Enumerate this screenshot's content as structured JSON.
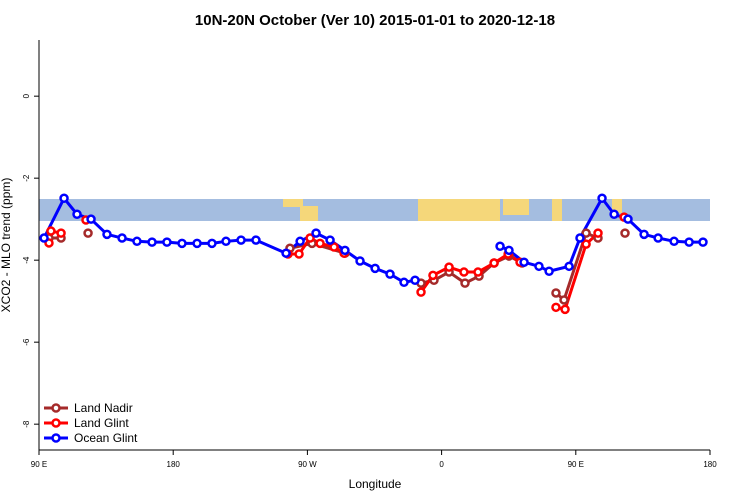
{
  "chart_data": {
    "type": "line",
    "title": "10N-20N October (Ver 10)   2015-01-01 to 2020-12-18",
    "x_label": "Longitude",
    "y_label": "XCO2 - MLO trend (ppm)",
    "xlim": [
      90,
      540
    ],
    "ylim": [
      1.37,
      -8.63
    ],
    "xticks": [
      {
        "value": 90,
        "label": "90 E"
      },
      {
        "value": 180,
        "label": "180"
      },
      {
        "value": 270,
        "label": "90 W"
      },
      {
        "value": 360,
        "label": "0"
      },
      {
        "value": 450,
        "label": "90 E"
      },
      {
        "value": 540,
        "label": "180"
      }
    ],
    "yticks": [
      0,
      -2,
      -4,
      -6,
      -8
    ],
    "legend": "bottom-left",
    "series": [
      {
        "name": "Land Nadir",
        "color": "#a52a2a",
        "x": [
          96.7,
          104.8,
          null,
          122.9,
          null,
          258.3,
          273.1,
          295.2,
          null,
          346.2,
          354.9,
          365.0,
          375.7,
          385.1,
          395.2,
          405.2,
          414.0,
          null,
          436.7,
          442.1,
          456.9,
          464.9,
          null,
          483.0
        ],
        "values": [
          -3.46,
          -3.46,
          null,
          -3.34,
          null,
          -3.71,
          -3.59,
          -3.83,
          null,
          -4.56,
          -4.49,
          -4.29,
          -4.56,
          -4.39,
          -4.07,
          -3.9,
          -4.07,
          null,
          -4.8,
          -4.97,
          -3.34,
          -3.46,
          null,
          -3.34
        ]
      },
      {
        "name": "Land Glint",
        "color": "#ff0000",
        "x": [
          96.7,
          98.0,
          104.8,
          null,
          121.5,
          null,
          257.0,
          264.4,
          271.8,
          278.5,
          287.9,
          294.6,
          null,
          346.2,
          354.2,
          365.0,
          375.0,
          384.4,
          395.2,
          404.6,
          412.6,
          null,
          436.7,
          442.8,
          456.9,
          464.9,
          null,
          482.4
        ],
        "values": [
          -3.58,
          -3.29,
          -3.34,
          null,
          -3.02,
          null,
          -3.85,
          -3.85,
          -3.46,
          -3.59,
          -3.68,
          -3.83,
          null,
          -4.78,
          -4.37,
          -4.17,
          -4.29,
          -4.29,
          -4.07,
          -3.85,
          -4.05,
          null,
          -5.15,
          -5.2,
          -3.61,
          -3.34,
          null,
          -2.95
        ]
      },
      {
        "name": "Ocean Glint",
        "color": "#0000ff",
        "x": [
          93.4,
          106.8,
          115.5,
          124.9,
          135.6,
          145.7,
          155.7,
          165.8,
          175.8,
          185.9,
          196.0,
          206.0,
          215.4,
          225.5,
          235.5,
          255.7,
          265.1,
          275.8,
          285.2,
          295.2,
          305.3,
          315.4,
          325.4,
          334.8,
          342.2,
          null,
          399.2,
          405.2,
          415.3,
          425.3,
          432.1,
          445.5,
          452.8,
          467.6,
          475.7,
          485.0,
          495.8,
          505.2,
          515.9,
          526.0,
          535.3
        ],
        "values": [
          -3.46,
          -2.49,
          -2.88,
          -3.0,
          -3.37,
          -3.46,
          -3.54,
          -3.56,
          -3.56,
          -3.59,
          -3.59,
          -3.59,
          -3.54,
          -3.51,
          -3.51,
          -3.83,
          -3.54,
          -3.34,
          -3.51,
          -3.76,
          -4.02,
          -4.2,
          -4.34,
          -4.54,
          -4.49,
          null,
          -3.66,
          -3.76,
          -4.05,
          -4.15,
          -4.27,
          -4.15,
          -3.46,
          -2.49,
          -2.88,
          -3.0,
          -3.37,
          -3.46,
          -3.54,
          -3.56,
          -3.56
        ]
      }
    ]
  }
}
